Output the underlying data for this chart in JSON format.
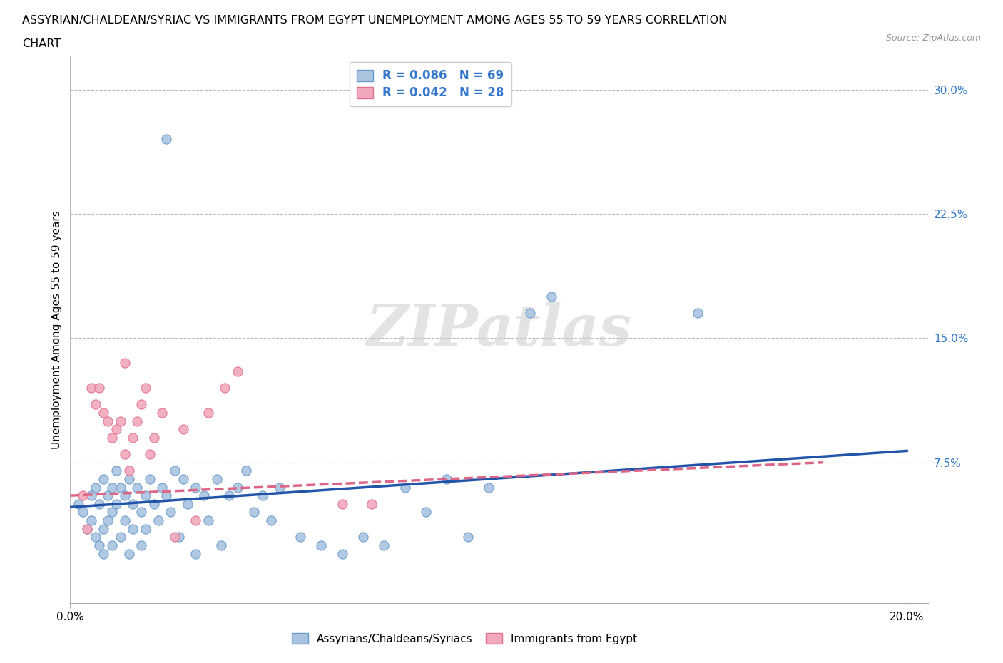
{
  "title_line1": "ASSYRIAN/CHALDEAN/SYRIAC VS IMMIGRANTS FROM EGYPT UNEMPLOYMENT AMONG AGES 55 TO 59 YEARS CORRELATION",
  "title_line2": "CHART",
  "source": "Source: ZipAtlas.com",
  "ylabel": "Unemployment Among Ages 55 to 59 years",
  "xlim": [
    0.0,
    0.205
  ],
  "ylim": [
    -0.01,
    0.32
  ],
  "ytick_vals": [
    0.075,
    0.15,
    0.225,
    0.3
  ],
  "ytick_labels": [
    "7.5%",
    "15.0%",
    "22.5%",
    "30.0%"
  ],
  "xtick_vals": [
    0.0,
    0.2
  ],
  "xtick_labels": [
    "0.0%",
    "20.0%"
  ],
  "r_blue": "0.086",
  "n_blue": "69",
  "r_pink": "0.042",
  "n_pink": "28",
  "blue_color": "#aac4e0",
  "pink_color": "#f2a8bc",
  "blue_edge": "#6699cc",
  "pink_edge": "#e07090",
  "blue_line_color": "#2255aa",
  "pink_line_color": "#dd6688",
  "grid_color": "#bbbbbb",
  "watermark": "ZIPatlas",
  "blue_scatter": [
    [
      0.002,
      0.05
    ],
    [
      0.003,
      0.045
    ],
    [
      0.004,
      0.035
    ],
    [
      0.005,
      0.055
    ],
    [
      0.005,
      0.04
    ],
    [
      0.006,
      0.06
    ],
    [
      0.006,
      0.03
    ],
    [
      0.007,
      0.05
    ],
    [
      0.007,
      0.025
    ],
    [
      0.008,
      0.065
    ],
    [
      0.008,
      0.035
    ],
    [
      0.008,
      0.02
    ],
    [
      0.009,
      0.055
    ],
    [
      0.009,
      0.04
    ],
    [
      0.01,
      0.06
    ],
    [
      0.01,
      0.045
    ],
    [
      0.01,
      0.025
    ],
    [
      0.011,
      0.07
    ],
    [
      0.011,
      0.05
    ],
    [
      0.012,
      0.06
    ],
    [
      0.012,
      0.03
    ],
    [
      0.013,
      0.055
    ],
    [
      0.013,
      0.04
    ],
    [
      0.014,
      0.065
    ],
    [
      0.014,
      0.02
    ],
    [
      0.015,
      0.05
    ],
    [
      0.015,
      0.035
    ],
    [
      0.016,
      0.06
    ],
    [
      0.017,
      0.045
    ],
    [
      0.017,
      0.025
    ],
    [
      0.018,
      0.055
    ],
    [
      0.018,
      0.035
    ],
    [
      0.019,
      0.065
    ],
    [
      0.02,
      0.05
    ],
    [
      0.021,
      0.04
    ],
    [
      0.022,
      0.06
    ],
    [
      0.023,
      0.055
    ],
    [
      0.024,
      0.045
    ],
    [
      0.025,
      0.07
    ],
    [
      0.026,
      0.03
    ],
    [
      0.027,
      0.065
    ],
    [
      0.028,
      0.05
    ],
    [
      0.03,
      0.06
    ],
    [
      0.03,
      0.02
    ],
    [
      0.032,
      0.055
    ],
    [
      0.033,
      0.04
    ],
    [
      0.035,
      0.065
    ],
    [
      0.036,
      0.025
    ],
    [
      0.038,
      0.055
    ],
    [
      0.04,
      0.06
    ],
    [
      0.042,
      0.07
    ],
    [
      0.044,
      0.045
    ],
    [
      0.046,
      0.055
    ],
    [
      0.048,
      0.04
    ],
    [
      0.05,
      0.06
    ],
    [
      0.055,
      0.03
    ],
    [
      0.06,
      0.025
    ],
    [
      0.065,
      0.02
    ],
    [
      0.07,
      0.03
    ],
    [
      0.075,
      0.025
    ],
    [
      0.08,
      0.06
    ],
    [
      0.085,
      0.045
    ],
    [
      0.09,
      0.065
    ],
    [
      0.095,
      0.03
    ],
    [
      0.1,
      0.06
    ],
    [
      0.11,
      0.165
    ],
    [
      0.115,
      0.175
    ],
    [
      0.15,
      0.165
    ],
    [
      0.023,
      0.27
    ]
  ],
  "pink_scatter": [
    [
      0.003,
      0.055
    ],
    [
      0.004,
      0.035
    ],
    [
      0.005,
      0.12
    ],
    [
      0.006,
      0.11
    ],
    [
      0.007,
      0.12
    ],
    [
      0.008,
      0.105
    ],
    [
      0.009,
      0.1
    ],
    [
      0.01,
      0.09
    ],
    [
      0.011,
      0.095
    ],
    [
      0.012,
      0.1
    ],
    [
      0.013,
      0.08
    ],
    [
      0.014,
      0.07
    ],
    [
      0.015,
      0.09
    ],
    [
      0.016,
      0.1
    ],
    [
      0.017,
      0.11
    ],
    [
      0.018,
      0.12
    ],
    [
      0.019,
      0.08
    ],
    [
      0.02,
      0.09
    ],
    [
      0.022,
      0.105
    ],
    [
      0.025,
      0.03
    ],
    [
      0.027,
      0.095
    ],
    [
      0.03,
      0.04
    ],
    [
      0.033,
      0.105
    ],
    [
      0.037,
      0.12
    ],
    [
      0.04,
      0.13
    ],
    [
      0.065,
      0.05
    ],
    [
      0.072,
      0.05
    ],
    [
      0.013,
      0.135
    ]
  ],
  "blue_trendline": [
    [
      0.0,
      0.048
    ],
    [
      0.2,
      0.082
    ]
  ],
  "pink_trendline": [
    [
      0.0,
      0.055
    ],
    [
      0.18,
      0.075
    ]
  ]
}
